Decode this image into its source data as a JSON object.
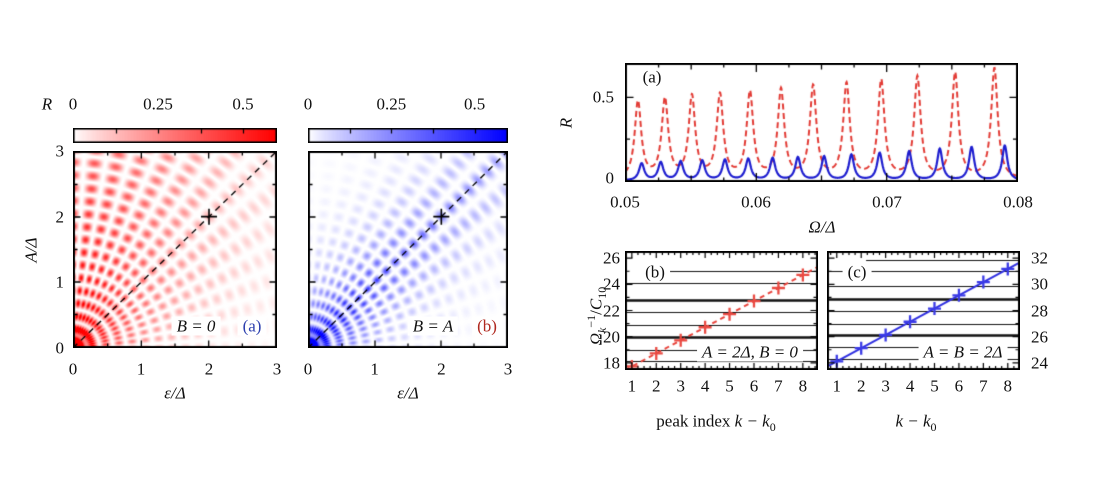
{
  "chart_data": [
    {
      "id": "heatmap_a",
      "type": "heatmap",
      "panel_label": "(a)",
      "panel_label_color": "#2c3eae",
      "annotation": "B = 0",
      "x_axis_label": "ε/Δ",
      "y_axis_label": "A/Δ",
      "x_range": [
        0,
        3
      ],
      "y_range": [
        0,
        3
      ],
      "x_tick_labels": [
        "0",
        "1",
        "2",
        "3"
      ],
      "y_tick_labels": [
        "0",
        "1",
        "2",
        "3"
      ],
      "colorbar": {
        "label": "R",
        "range": [
          0,
          0.6
        ],
        "tick_values": [
          0,
          0.25,
          0.5
        ],
        "tick_labels": [
          "0",
          "0.25",
          "0.5"
        ],
        "minor_tick_values": [
          0.125,
          0.25,
          0.375,
          0.5
        ],
        "color_low": "#ffffff",
        "color_high": "#ff0000"
      },
      "marker_plus": {
        "x": 2,
        "y": 2
      },
      "diagonal_line": {
        "from": [
          0,
          0
        ],
        "to": [
          3,
          3
        ],
        "style": "dashed"
      },
      "pattern": {
        "arc_period": 0.195,
        "angular_lobes": 28,
        "amplitude": 0.75,
        "decay_base": 0.25,
        "decay_aniso": 1.1,
        "anisotropy": "away-from-top",
        "origin_blob": 0.9,
        "channel": "red"
      }
    },
    {
      "id": "heatmap_b",
      "type": "heatmap",
      "panel_label": "(b)",
      "panel_label_color": "#b0281f",
      "annotation": "B = A",
      "x_axis_label": "ε/Δ",
      "y_axis_label": "A/Δ",
      "x_range": [
        0,
        3
      ],
      "y_range": [
        0,
        3
      ],
      "x_tick_labels": [
        "0",
        "1",
        "2",
        "3"
      ],
      "y_tick_labels": [
        "0",
        "1",
        "2",
        "3"
      ],
      "colorbar": {
        "label": "R",
        "range": [
          0,
          0.6
        ],
        "tick_values": [
          0,
          0.25,
          0.5
        ],
        "tick_labels": [
          "0",
          "0.25",
          "0.5"
        ],
        "minor_tick_values": [
          0.125,
          0.25,
          0.375,
          0.5
        ],
        "color_low": "#ffffff",
        "color_high": "#0f0fff"
      },
      "marker_plus": {
        "x": 2,
        "y": 2
      },
      "diagonal_line": {
        "from": [
          0,
          0
        ],
        "to": [
          3,
          3
        ],
        "style": "dashed"
      },
      "pattern": {
        "arc_period": 0.195,
        "angular_lobes": 28,
        "amplitude": 0.7,
        "decay_base": 0.33,
        "decay_aniso": 2.3,
        "anisotropy": "away-from-diagonal",
        "origin_blob": 0.9,
        "channel": "blue"
      }
    },
    {
      "id": "spectrum",
      "type": "line",
      "panel_label": "(a)",
      "x_label": "Ω/Δ",
      "y_label": "R",
      "x_range": [
        0.05,
        0.08
      ],
      "y_range": [
        0,
        0.7
      ],
      "x_tick_values": [
        0.05,
        0.06,
        0.07,
        0.08
      ],
      "x_tick_labels": [
        "0.05",
        "0.06",
        "0.07",
        "0.08"
      ],
      "y_tick_values": [
        0,
        0.5
      ],
      "y_tick_labels": [
        "0",
        "0.5"
      ],
      "series": [
        {
          "name": "red-dashed",
          "color": "#e23b35",
          "style": "dashed",
          "peak_x": [
            0.05099,
            0.05305,
            0.05511,
            0.05725,
            0.05954,
            0.06191,
            0.06436,
            0.06691,
            0.06956,
            0.07232,
            0.0752,
            0.0782
          ],
          "peak_h": [
            0.455,
            0.465,
            0.48,
            0.49,
            0.505,
            0.52,
            0.54,
            0.555,
            0.575,
            0.595,
            0.62,
            0.65
          ],
          "half_width": 0.0003,
          "baseline": 0.012
        },
        {
          "name": "blue-solid",
          "color": "#1d1dcf",
          "style": "solid",
          "peak_x": [
            0.05127,
            0.05273,
            0.05425,
            0.0559,
            0.05763,
            0.05941,
            0.06127,
            0.0632,
            0.0652,
            0.06728,
            0.06944,
            0.07169,
            0.07403,
            0.07646,
            0.07899
          ],
          "peak_h": [
            0.1,
            0.105,
            0.11,
            0.115,
            0.12,
            0.125,
            0.13,
            0.135,
            0.14,
            0.15,
            0.16,
            0.17,
            0.185,
            0.195,
            0.205
          ],
          "half_width": 0.00024,
          "baseline": 0.007
        }
      ]
    },
    {
      "id": "fit_b",
      "type": "scatter",
      "panel_label": "(b)",
      "annotation": "A = 2Δ, B = 0",
      "x_label_parts": {
        "pre": "peak index ",
        "expr": "k − k",
        "sub": "0"
      },
      "y_label_parts": {
        "sym": "Ω",
        "sym_sub": "k",
        "sym_sup": "−1",
        "slash": "/",
        "c": "C",
        "c_sub": "10"
      },
      "x_range": [
        0.72,
        8.62
      ],
      "y_range": [
        17.45,
        26.55
      ],
      "x_tick_values": [
        1,
        2,
        3,
        4,
        5,
        6,
        7,
        8
      ],
      "x_tick_labels": [
        "1",
        "2",
        "3",
        "4",
        "5",
        "6",
        "7",
        "8"
      ],
      "y_tick_values": [
        18,
        20,
        22,
        24,
        26
      ],
      "y_tick_labels": [
        "18",
        "20",
        "22",
        "24",
        "26"
      ],
      "points_x": [
        1,
        2,
        3,
        4,
        5,
        6,
        7,
        8
      ],
      "points_y": [
        17.72,
        18.72,
        19.72,
        20.72,
        21.72,
        22.72,
        23.72,
        24.72
      ],
      "fit_line": {
        "intercept": 16.72,
        "slope": 1.0,
        "style": "dashed",
        "color": "#e8423a"
      },
      "marker_color": "#ea4a42",
      "gridlines": [
        {
          "y": 25.05,
          "x1": 2.2
        },
        {
          "y": 24.1
        },
        {
          "y": 22.8,
          "thick": true
        },
        {
          "y": 21.85
        },
        {
          "y": 20.9
        },
        {
          "y": 19.95,
          "thick": true
        },
        {
          "y": 19.0
        },
        {
          "y": 18.1
        },
        {
          "y": 17.62,
          "x1": 2.0,
          "x2": 3.65
        }
      ]
    },
    {
      "id": "fit_c",
      "type": "scatter",
      "panel_label": "(c)",
      "annotation": "A = B = 2Δ",
      "x_label_parts": {
        "pre": "",
        "expr": "k − k",
        "sub": "0"
      },
      "x_range": [
        0.6,
        8.5
      ],
      "y_range": [
        23.45,
        32.55
      ],
      "x_tick_values": [
        1,
        2,
        3,
        4,
        5,
        6,
        7,
        8
      ],
      "x_tick_labels": [
        "1",
        "2",
        "3",
        "4",
        "5",
        "6",
        "7",
        "8"
      ],
      "y_tick_values": [
        24,
        26,
        28,
        30,
        32
      ],
      "y_tick_labels": [
        "24",
        "26",
        "28",
        "30",
        "32"
      ],
      "points_x": [
        1,
        2,
        3,
        4,
        5,
        6,
        7,
        8
      ],
      "points_y": [
        24.11,
        25.12,
        26.13,
        27.14,
        28.15,
        29.16,
        30.17,
        31.18
      ],
      "fit_line": {
        "intercept": 23.1,
        "slope": 1.01,
        "style": "solid",
        "color": "#2e2ee0"
      },
      "marker_color": "#3a3ae6",
      "gridlines": [
        {
          "y": 31.85,
          "x1": 2.2
        },
        {
          "y": 31.0
        },
        {
          "y": 29.85
        },
        {
          "y": 28.9,
          "thick": true
        },
        {
          "y": 27.95
        },
        {
          "y": 27.0
        },
        {
          "y": 26.1,
          "thick": true
        },
        {
          "y": 25.2
        },
        {
          "y": 24.3
        },
        {
          "y": 23.55,
          "x1": 1.5,
          "x2": 3.65
        }
      ]
    }
  ]
}
